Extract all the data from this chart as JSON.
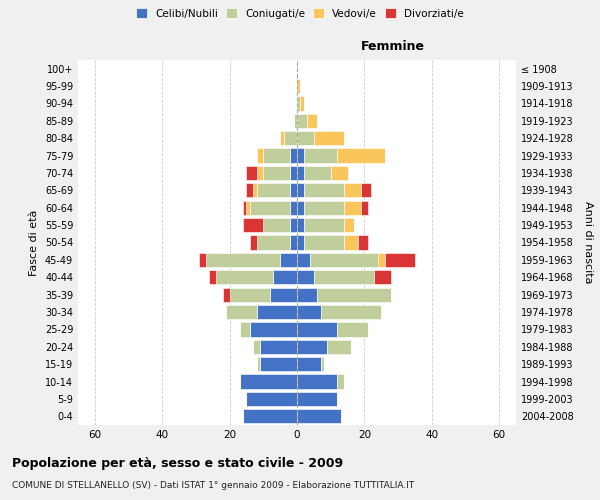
{
  "age_groups": [
    "0-4",
    "5-9",
    "10-14",
    "15-19",
    "20-24",
    "25-29",
    "30-34",
    "35-39",
    "40-44",
    "45-49",
    "50-54",
    "55-59",
    "60-64",
    "65-69",
    "70-74",
    "75-79",
    "80-84",
    "85-89",
    "90-94",
    "95-99",
    "100+"
  ],
  "birth_years": [
    "2004-2008",
    "1999-2003",
    "1994-1998",
    "1989-1993",
    "1984-1988",
    "1979-1983",
    "1974-1978",
    "1969-1973",
    "1964-1968",
    "1959-1963",
    "1954-1958",
    "1949-1953",
    "1944-1948",
    "1939-1943",
    "1934-1938",
    "1929-1933",
    "1924-1928",
    "1919-1923",
    "1914-1918",
    "1909-1913",
    "≤ 1908"
  ],
  "male": {
    "celibi": [
      16,
      15,
      17,
      11,
      11,
      14,
      12,
      8,
      7,
      5,
      2,
      2,
      2,
      2,
      2,
      2,
      0,
      0,
      0,
      0,
      0
    ],
    "coniugati": [
      0,
      0,
      0,
      1,
      2,
      3,
      9,
      12,
      17,
      22,
      10,
      8,
      12,
      10,
      8,
      8,
      4,
      1,
      0,
      0,
      0
    ],
    "vedovi": [
      0,
      0,
      0,
      0,
      0,
      0,
      0,
      0,
      0,
      0,
      0,
      0,
      1,
      1,
      2,
      2,
      1,
      0,
      0,
      0,
      0
    ],
    "divorziati": [
      0,
      0,
      0,
      0,
      0,
      0,
      0,
      2,
      2,
      2,
      2,
      6,
      1,
      2,
      3,
      0,
      0,
      0,
      0,
      0,
      0
    ]
  },
  "female": {
    "nubili": [
      13,
      12,
      12,
      7,
      9,
      12,
      7,
      6,
      5,
      4,
      2,
      2,
      2,
      2,
      2,
      2,
      0,
      0,
      0,
      0,
      0
    ],
    "coniugate": [
      0,
      0,
      2,
      1,
      7,
      9,
      18,
      22,
      18,
      20,
      12,
      12,
      12,
      12,
      8,
      10,
      5,
      3,
      1,
      0,
      0
    ],
    "vedove": [
      0,
      0,
      0,
      0,
      0,
      0,
      0,
      0,
      0,
      2,
      4,
      3,
      5,
      5,
      5,
      14,
      9,
      3,
      1,
      1,
      0
    ],
    "divorziate": [
      0,
      0,
      0,
      0,
      0,
      0,
      0,
      0,
      5,
      9,
      3,
      0,
      2,
      3,
      0,
      0,
      0,
      0,
      0,
      0,
      0
    ]
  },
  "colors": {
    "celibi": "#4472C4",
    "coniugati": "#BFCE9A",
    "vedovi": "#FAC55A",
    "divorziati": "#D93535"
  },
  "xlim": 65,
  "title": "Popolazione per età, sesso e stato civile - 2009",
  "subtitle": "COMUNE DI STELLANELLO (SV) - Dati ISTAT 1° gennaio 2009 - Elaborazione TUTTITALIA.IT",
  "ylabel_left": "Fasce di età",
  "ylabel_right": "Anni di nascita",
  "xlabel_female": "Femmine",
  "bg_color": "#f0f0f0",
  "plot_bg_color": "#ffffff"
}
